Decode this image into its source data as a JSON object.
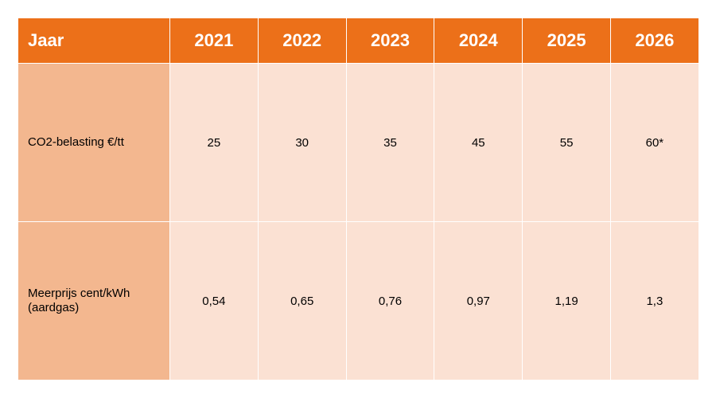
{
  "table": {
    "header": {
      "first": "Jaar",
      "years": [
        "2021",
        "2022",
        "2023",
        "2024",
        "2025",
        "2026"
      ]
    },
    "rows": [
      {
        "label_lines": [
          "CO2-belasting €/tt"
        ],
        "values": [
          "25",
          "30",
          "35",
          "45",
          "55",
          "60*"
        ]
      },
      {
        "label_lines": [
          "Meerprijs cent/kWh",
          "(aardgas)"
        ],
        "values": [
          "0,54",
          "0,65",
          "0,76",
          "0,97",
          "1,19",
          "1,3"
        ]
      }
    ]
  },
  "colors": {
    "header_bg": "#ec7019",
    "label_bg": "#f3b78f",
    "cell_bg": "#fbe1d3"
  }
}
